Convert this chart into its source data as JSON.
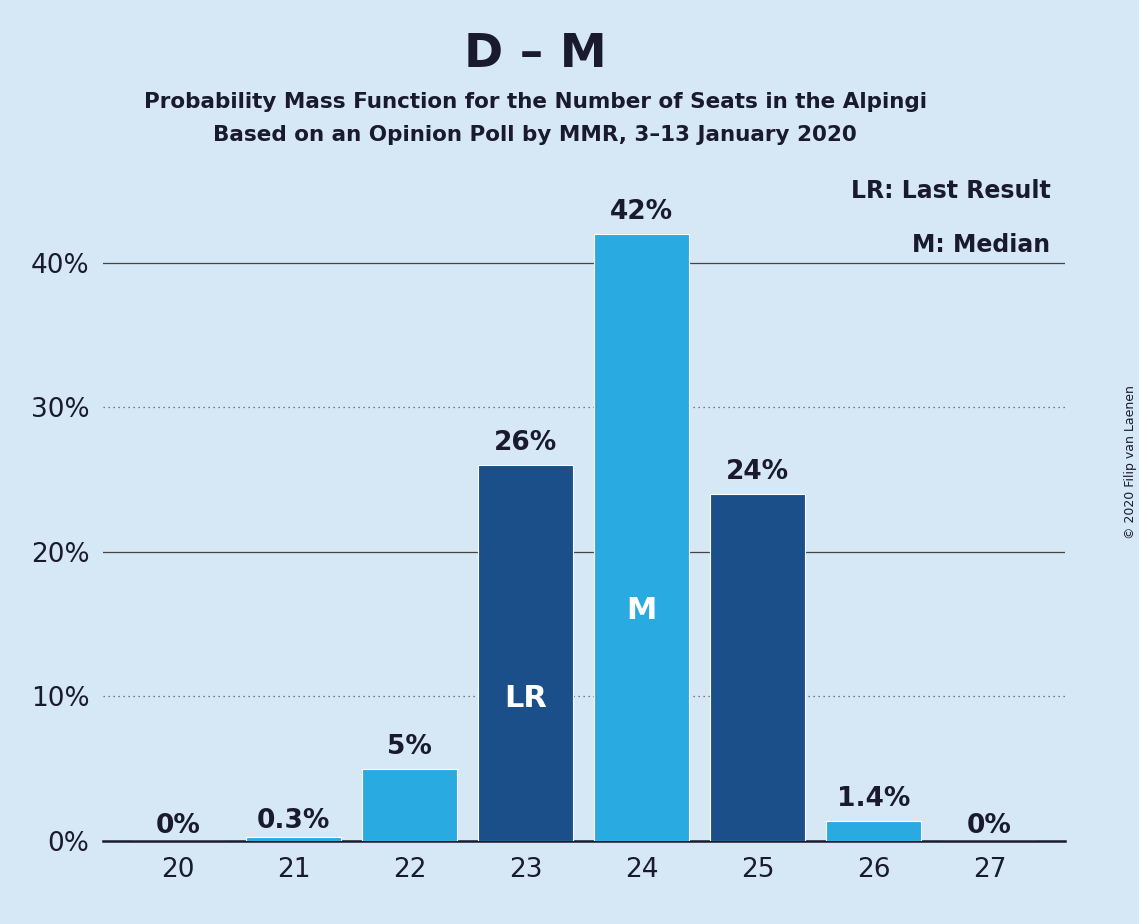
{
  "title": "D – M",
  "subtitle1": "Probability Mass Function for the Number of Seats in the Alpingi",
  "subtitle2": "Based on an Opinion Poll by MMR, 3–13 January 2020",
  "copyright": "© 2020 Filip van Laenen",
  "seats": [
    20,
    21,
    22,
    23,
    24,
    25,
    26,
    27
  ],
  "values": [
    0.0,
    0.3,
    5.0,
    26.0,
    42.0,
    24.0,
    1.4,
    0.0
  ],
  "labels": [
    "0%",
    "0.3%",
    "5%",
    "26%",
    "42%",
    "24%",
    "1.4%",
    "0%"
  ],
  "bar_colors": [
    "#29abe2",
    "#29abe2",
    "#29abe2",
    "#1a4f8a",
    "#29abe2",
    "#1a4f8a",
    "#29abe2",
    "#29abe2"
  ],
  "lr_bar": 23,
  "median_bar": 24,
  "lr_label": "LR",
  "median_label": "M",
  "legend_lr": "LR: Last Result",
  "legend_m": "M: Median",
  "bg_color": "#d6e8f5",
  "yticks": [
    0,
    10,
    20,
    30,
    40
  ],
  "ylim": [
    0,
    47
  ],
  "title_fontsize": 34,
  "subtitle_fontsize": 15.5,
  "axis_label_fontsize": 19,
  "bar_label_fontsize": 19,
  "bar_annotation_fontsize": 22,
  "legend_fontsize": 17,
  "copyright_fontsize": 9,
  "text_color": "#1a1a2e",
  "grid_solid_color": "#444444",
  "grid_dot_color": "#555555"
}
